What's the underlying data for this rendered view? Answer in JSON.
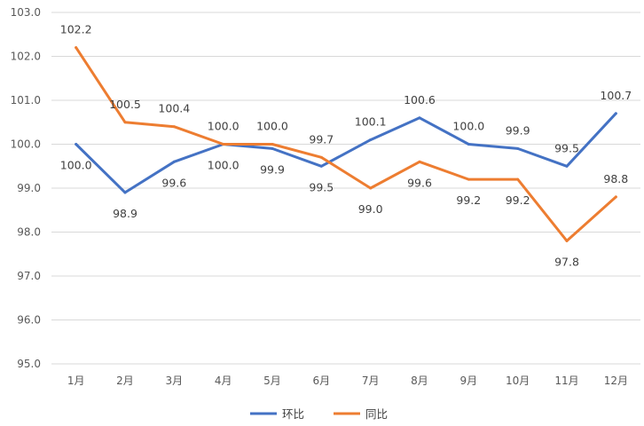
{
  "chart_data": {
    "type": "line",
    "categories": [
      "1月",
      "2月",
      "3月",
      "4月",
      "5月",
      "6月",
      "7月",
      "8月",
      "9月",
      "10月",
      "11月",
      "12月"
    ],
    "series": [
      {
        "name": "环比",
        "color": "#4472c4",
        "values": [
          100.0,
          98.9,
          99.6,
          100.0,
          99.9,
          99.5,
          100.1,
          100.6,
          100.0,
          99.9,
          99.5,
          100.7
        ],
        "labels": [
          "100.0",
          "98.9",
          "99.6",
          "100.0",
          "99.9",
          "99.5",
          "100.1",
          "100.6",
          "100.0",
          "99.9",
          "99.5",
          "100.7"
        ]
      },
      {
        "name": "同比",
        "color": "#ed7d31",
        "values": [
          102.2,
          100.5,
          100.4,
          100.0,
          100.0,
          99.7,
          99.0,
          99.6,
          99.2,
          99.2,
          97.8,
          98.8
        ],
        "labels": [
          "102.2",
          "100.5",
          "100.4",
          "100.0",
          "100.0",
          "99.7",
          "99.0",
          "99.6",
          "99.2",
          "99.2",
          "97.8",
          "98.8"
        ]
      }
    ],
    "ylim": [
      95.0,
      103.0
    ],
    "yticks": [
      "95.0",
      "96.0",
      "97.0",
      "98.0",
      "99.0",
      "100.0",
      "101.0",
      "102.0",
      "103.0"
    ],
    "grid": true,
    "legend": "bottom-center"
  }
}
